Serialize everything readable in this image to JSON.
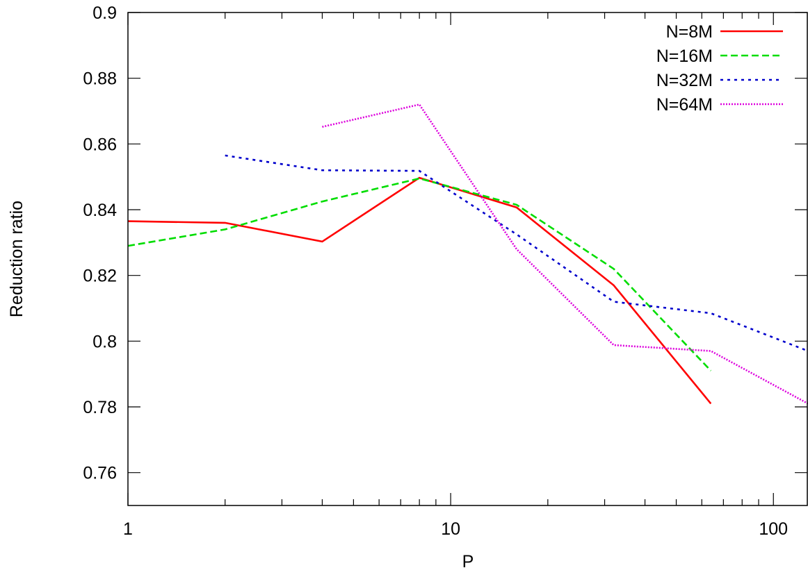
{
  "chart_data": {
    "type": "line",
    "title": "",
    "xlabel": "P",
    "ylabel": "Reduction ratio",
    "xscale": "log",
    "xlim": [
      1,
      128
    ],
    "ylim": [
      0.75,
      0.9
    ],
    "x_ticks": [
      {
        "value": 1,
        "label": "1"
      },
      {
        "value": 10,
        "label": "10"
      },
      {
        "value": 100,
        "label": "100"
      }
    ],
    "y_ticks": [
      {
        "value": 0.76,
        "label": "0.76"
      },
      {
        "value": 0.78,
        "label": "0.78"
      },
      {
        "value": 0.8,
        "label": "0.8"
      },
      {
        "value": 0.82,
        "label": "0.82"
      },
      {
        "value": 0.84,
        "label": "0.84"
      },
      {
        "value": 0.86,
        "label": "0.86"
      },
      {
        "value": 0.88,
        "label": "0.88"
      },
      {
        "value": 0.9,
        "label": "0.9"
      }
    ],
    "grid": false,
    "legend_position": "top-right",
    "series": [
      {
        "name": "N=8M",
        "color": "#ff0000",
        "dash": "solid",
        "x": [
          1,
          2,
          4,
          8,
          16,
          32,
          64
        ],
        "y": [
          0.8365,
          0.836,
          0.8303,
          0.8497,
          0.8407,
          0.817,
          0.781
        ]
      },
      {
        "name": "N=16M",
        "color": "#00dd00",
        "dash": "dashed",
        "x": [
          1,
          2,
          4,
          8,
          16,
          32,
          64
        ],
        "y": [
          0.829,
          0.834,
          0.8425,
          0.8495,
          0.8415,
          0.822,
          0.791
        ]
      },
      {
        "name": "N=32M",
        "color": "#0000cc",
        "dash": "dotted",
        "x": [
          2,
          4,
          8,
          16,
          32,
          64,
          128
        ],
        "y": [
          0.8565,
          0.852,
          0.8518,
          0.8325,
          0.812,
          0.8085,
          0.797
        ]
      },
      {
        "name": "N=64M",
        "color": "#dd00dd",
        "dash": "fine-dotted",
        "x": [
          4,
          8,
          16,
          32,
          64,
          128
        ],
        "y": [
          0.8652,
          0.872,
          0.828,
          0.7988,
          0.797,
          0.781
        ]
      }
    ]
  }
}
